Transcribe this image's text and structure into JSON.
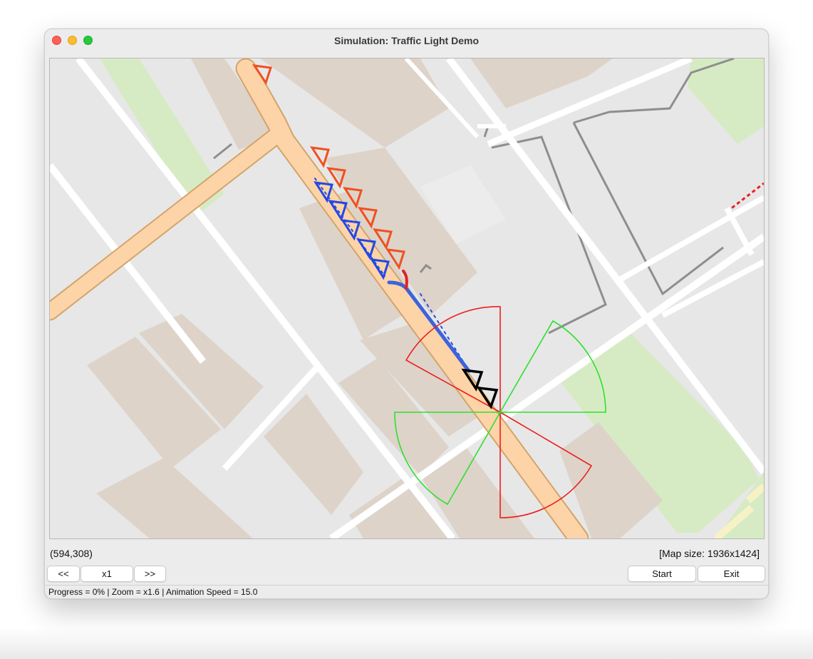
{
  "window": {
    "title": "Simulation: Traffic Light Demo"
  },
  "map": {
    "cursor_coordinates": "(594,308)",
    "map_size_label": "[Map size: 1936x1424]",
    "colors": {
      "background": "#e7e7e7",
      "building": "#ddd3c9",
      "park": "#d6ebc4",
      "street": "#ffffff",
      "main_road_fill": "#fdd4a8",
      "main_road_edge": "#d3a46a",
      "agent_orange": "#f0501f",
      "agent_blue": "#2248e6",
      "agent_black": "#000000",
      "sensor_red": "#ee1c1c",
      "sensor_green": "#2ee02e"
    }
  },
  "controls": {
    "rewind_label": "<<",
    "speed_label": "x1",
    "forward_label": ">>",
    "start_label": "Start",
    "exit_label": "Exit"
  },
  "status": {
    "text": "Progress = 0% | Zoom = x1.6 | Animation Speed = 15.0"
  }
}
